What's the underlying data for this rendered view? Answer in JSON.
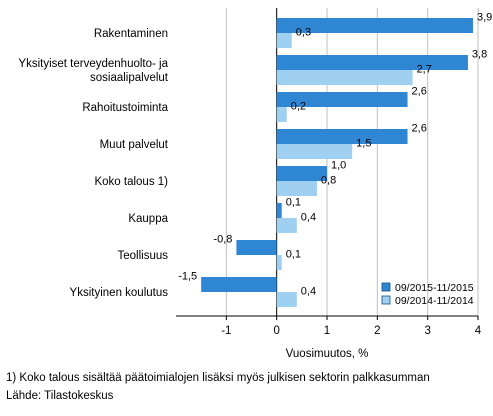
{
  "chart_data": {
    "type": "bar",
    "orientation": "horizontal",
    "categories": [
      [
        "Rakentaminen"
      ],
      [
        "Yksityiset terveydenhuolto- ja",
        "sosiaalipalvelut"
      ],
      [
        "Rahoitustoiminta"
      ],
      [
        "Muut palvelut"
      ],
      [
        "Koko talous 1)"
      ],
      [
        "Kauppa"
      ],
      [
        "Teollisuus"
      ],
      [
        "Yksityinen koulutus"
      ]
    ],
    "series": [
      {
        "name": "09/2015-11/2015",
        "color": "#2f86d3",
        "values": [
          3.9,
          3.8,
          2.6,
          2.6,
          1.0,
          0.1,
          -0.8,
          -1.5
        ]
      },
      {
        "name": "09/2014-11/2014",
        "color": "#9fcff1",
        "values": [
          0.3,
          2.7,
          0.2,
          1.5,
          0.8,
          0.4,
          0.1,
          0.4
        ]
      }
    ],
    "data_labels": [
      [
        "3,9",
        "3,8",
        "2,6",
        "2,6",
        "1,0",
        "0,1",
        "-0,8",
        "-1,5"
      ],
      [
        "0,3",
        "2,7",
        "0,2",
        "1,5",
        "0,8",
        "0,4",
        "0,1",
        "0,4"
      ]
    ],
    "xlabel": "Vuosimuutos, %",
    "xlim": [
      -2,
      4
    ],
    "xticks": [
      -1,
      0,
      1,
      2,
      3,
      4
    ],
    "grid": "vertical",
    "legend_position": "bottom-right"
  },
  "footnotes": {
    "note": "1) Koko talous sisältää päätoimialojen lisäksi myös julkisen sektorin palkkasumman",
    "source": "Lähde: Tilastokeskus"
  }
}
